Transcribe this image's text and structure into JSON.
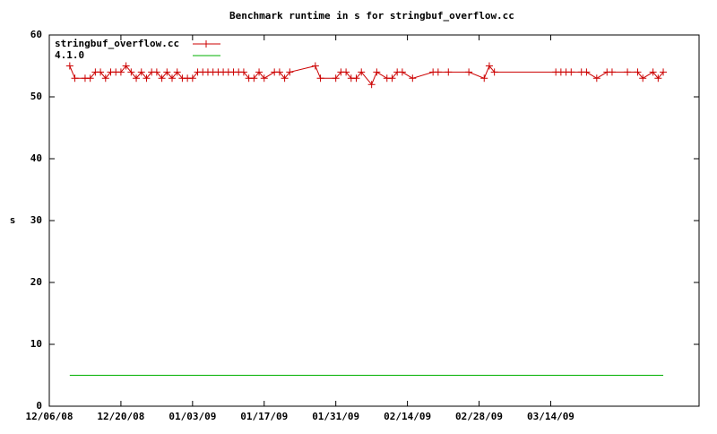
{
  "chart_data": {
    "type": "line",
    "title": "Benchmark runtime in s for stringbuf_overflow.cc",
    "y_label": "s",
    "xlim": [
      "12/06/08",
      "04/12/09"
    ],
    "xticks": [
      "12/06/08",
      "12/20/08",
      "01/03/09",
      "01/17/09",
      "01/31/09",
      "02/14/09",
      "02/28/09",
      "03/14/09"
    ],
    "ylim": [
      0,
      60
    ],
    "yticks": [
      0,
      10,
      20,
      30,
      40,
      50,
      60
    ],
    "legend": "top-left",
    "series": [
      {
        "name": "stringbuf_overflow.cc",
        "color": "#cc0000",
        "marker": "+",
        "x": [
          "12/10/08",
          "12/11/08",
          "12/13/08",
          "12/14/08",
          "12/15/08",
          "12/16/08",
          "12/17/08",
          "12/18/08",
          "12/19/08",
          "12/20/08",
          "12/21/08",
          "12/22/08",
          "12/23/08",
          "12/24/08",
          "12/25/08",
          "12/26/08",
          "12/27/08",
          "12/28/08",
          "12/29/08",
          "12/30/08",
          "12/31/08",
          "01/01/09",
          "01/02/09",
          "01/03/09",
          "01/04/09",
          "01/05/09",
          "01/06/09",
          "01/07/09",
          "01/08/09",
          "01/09/09",
          "01/10/09",
          "01/11/09",
          "01/12/09",
          "01/13/09",
          "01/14/09",
          "01/15/09",
          "01/16/09",
          "01/17/09",
          "01/19/09",
          "01/20/09",
          "01/21/09",
          "01/22/09",
          "01/27/09",
          "01/28/09",
          "01/31/09",
          "02/01/09",
          "02/02/09",
          "02/03/09",
          "02/04/09",
          "02/05/09",
          "02/07/09",
          "02/08/09",
          "02/10/09",
          "02/11/09",
          "02/12/09",
          "02/13/09",
          "02/15/09",
          "02/19/09",
          "02/20/09",
          "02/22/09",
          "02/26/09",
          "03/01/09",
          "03/02/09",
          "03/03/09",
          "03/15/09",
          "03/16/09",
          "03/17/09",
          "03/18/09",
          "03/20/09",
          "03/21/09",
          "03/23/09",
          "03/25/09",
          "03/26/09",
          "03/29/09",
          "03/31/09",
          "04/01/09",
          "04/03/09",
          "04/04/09",
          "04/05/09"
        ],
        "values": [
          55,
          53,
          53,
          53,
          54,
          54,
          53,
          54,
          54,
          54,
          55,
          54,
          53,
          54,
          53,
          54,
          54,
          53,
          54,
          53,
          54,
          53,
          53,
          53,
          54,
          54,
          54,
          54,
          54,
          54,
          54,
          54,
          54,
          54,
          53,
          53,
          54,
          53,
          54,
          54,
          53,
          54,
          55,
          53,
          53,
          54,
          54,
          53,
          53,
          54,
          52,
          54,
          53,
          53,
          54,
          54,
          53,
          54,
          54,
          54,
          54,
          53,
          55,
          54,
          54,
          54,
          54,
          54,
          54,
          54,
          53,
          54,
          54,
          54,
          54,
          53,
          54,
          53,
          54
        ]
      },
      {
        "name": "4.1.0",
        "color": "#00b000",
        "x": [
          "12/10/08",
          "04/05/09"
        ],
        "values": [
          5,
          5
        ]
      }
    ]
  }
}
